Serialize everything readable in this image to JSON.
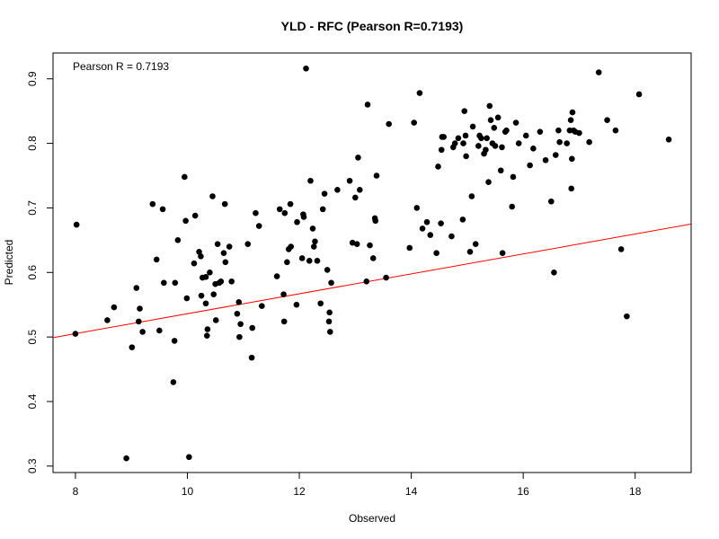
{
  "chart_data": {
    "type": "scatter",
    "title": "YLD - RFC (Pearson R=0.7193)",
    "xlabel": "Observed",
    "ylabel": "Predicted",
    "annotation": "Pearson R = 0.7193",
    "xlim": [
      7.6,
      19.0
    ],
    "ylim": [
      0.29,
      0.94
    ],
    "xticks": [
      8,
      10,
      12,
      14,
      16,
      18
    ],
    "yticks": [
      0.3,
      0.4,
      0.5,
      0.6,
      0.7,
      0.8,
      0.9
    ],
    "point_color": "#000000",
    "line_color": "#ff0000",
    "fit_line": {
      "x": [
        7.6,
        19.0
      ],
      "y": [
        0.499,
        0.675
      ]
    },
    "points": [
      [
        8.0,
        0.505
      ],
      [
        8.02,
        0.674
      ],
      [
        8.57,
        0.526
      ],
      [
        8.69,
        0.546
      ],
      [
        8.91,
        0.312
      ],
      [
        9.01,
        0.484
      ],
      [
        9.09,
        0.576
      ],
      [
        9.13,
        0.524
      ],
      [
        9.15,
        0.544
      ],
      [
        9.2,
        0.508
      ],
      [
        9.38,
        0.706
      ],
      [
        9.45,
        0.62
      ],
      [
        9.5,
        0.51
      ],
      [
        9.56,
        0.698
      ],
      [
        9.58,
        0.584
      ],
      [
        9.75,
        0.43
      ],
      [
        9.77,
        0.494
      ],
      [
        9.78,
        0.584
      ],
      [
        9.83,
        0.65
      ],
      [
        9.95,
        0.748
      ],
      [
        9.97,
        0.68
      ],
      [
        9.99,
        0.56
      ],
      [
        10.03,
        0.314
      ],
      [
        10.12,
        0.614
      ],
      [
        10.14,
        0.688
      ],
      [
        10.21,
        0.632
      ],
      [
        10.24,
        0.625
      ],
      [
        10.25,
        0.564
      ],
      [
        10.27,
        0.592
      ],
      [
        10.33,
        0.593
      ],
      [
        10.33,
        0.552
      ],
      [
        10.35,
        0.502
      ],
      [
        10.36,
        0.512
      ],
      [
        10.4,
        0.6
      ],
      [
        10.45,
        0.718
      ],
      [
        10.47,
        0.566
      ],
      [
        10.5,
        0.582
      ],
      [
        10.51,
        0.526
      ],
      [
        10.54,
        0.644
      ],
      [
        10.57,
        0.584
      ],
      [
        10.6,
        0.586
      ],
      [
        10.65,
        0.63
      ],
      [
        10.67,
        0.706
      ],
      [
        10.68,
        0.616
      ],
      [
        10.75,
        0.64
      ],
      [
        10.79,
        0.586
      ],
      [
        10.89,
        0.536
      ],
      [
        10.92,
        0.554
      ],
      [
        10.93,
        0.5
      ],
      [
        10.95,
        0.52
      ],
      [
        11.08,
        0.644
      ],
      [
        11.15,
        0.468
      ],
      [
        11.16,
        0.514
      ],
      [
        11.22,
        0.692
      ],
      [
        11.28,
        0.672
      ],
      [
        11.33,
        0.548
      ],
      [
        11.6,
        0.594
      ],
      [
        11.65,
        0.698
      ],
      [
        11.72,
        0.566
      ],
      [
        11.73,
        0.524
      ],
      [
        11.74,
        0.692
      ],
      [
        11.78,
        0.616
      ],
      [
        11.81,
        0.636
      ],
      [
        11.84,
        0.706
      ],
      [
        11.85,
        0.64
      ],
      [
        11.95,
        0.55
      ],
      [
        11.96,
        0.678
      ],
      [
        12.05,
        0.622
      ],
      [
        12.07,
        0.69
      ],
      [
        12.08,
        0.686
      ],
      [
        12.12,
        0.916
      ],
      [
        12.18,
        0.618
      ],
      [
        12.2,
        0.742
      ],
      [
        12.24,
        0.668
      ],
      [
        12.26,
        0.64
      ],
      [
        12.28,
        0.648
      ],
      [
        12.32,
        0.618
      ],
      [
        12.38,
        0.552
      ],
      [
        12.42,
        0.698
      ],
      [
        12.45,
        0.722
      ],
      [
        12.5,
        0.604
      ],
      [
        12.53,
        0.524
      ],
      [
        12.54,
        0.538
      ],
      [
        12.55,
        0.508
      ],
      [
        12.57,
        0.584
      ],
      [
        12.68,
        0.728
      ],
      [
        12.9,
        0.742
      ],
      [
        12.95,
        0.646
      ],
      [
        13.0,
        0.716
      ],
      [
        13.03,
        0.644
      ],
      [
        13.05,
        0.778
      ],
      [
        13.08,
        0.728
      ],
      [
        13.2,
        0.586
      ],
      [
        13.22,
        0.86
      ],
      [
        13.26,
        0.642
      ],
      [
        13.32,
        0.622
      ],
      [
        13.35,
        0.684
      ],
      [
        13.36,
        0.68
      ],
      [
        13.38,
        0.75
      ],
      [
        13.55,
        0.592
      ],
      [
        13.6,
        0.83
      ],
      [
        13.97,
        0.638
      ],
      [
        14.05,
        0.832
      ],
      [
        14.1,
        0.7
      ],
      [
        14.15,
        0.878
      ],
      [
        14.2,
        0.668
      ],
      [
        14.28,
        0.678
      ],
      [
        14.34,
        0.658
      ],
      [
        14.45,
        0.63
      ],
      [
        14.48,
        0.764
      ],
      [
        14.53,
        0.676
      ],
      [
        14.54,
        0.79
      ],
      [
        14.55,
        0.81
      ],
      [
        14.58,
        0.81
      ],
      [
        14.72,
        0.656
      ],
      [
        14.75,
        0.794
      ],
      [
        14.78,
        0.8
      ],
      [
        14.84,
        0.808
      ],
      [
        14.92,
        0.682
      ],
      [
        14.93,
        0.8
      ],
      [
        14.95,
        0.85
      ],
      [
        14.97,
        0.812
      ],
      [
        14.98,
        0.78
      ],
      [
        15.05,
        0.632
      ],
      [
        15.08,
        0.718
      ],
      [
        15.1,
        0.826
      ],
      [
        15.15,
        0.644
      ],
      [
        15.2,
        0.796
      ],
      [
        15.22,
        0.812
      ],
      [
        15.25,
        0.808
      ],
      [
        15.3,
        0.784
      ],
      [
        15.33,
        0.79
      ],
      [
        15.35,
        0.808
      ],
      [
        15.38,
        0.74
      ],
      [
        15.4,
        0.858
      ],
      [
        15.42,
        0.836
      ],
      [
        15.45,
        0.8
      ],
      [
        15.48,
        0.824
      ],
      [
        15.5,
        0.796
      ],
      [
        15.55,
        0.84
      ],
      [
        15.6,
        0.758
      ],
      [
        15.62,
        0.794
      ],
      [
        15.63,
        0.63
      ],
      [
        15.68,
        0.818
      ],
      [
        15.7,
        0.82
      ],
      [
        15.8,
        0.702
      ],
      [
        15.82,
        0.748
      ],
      [
        15.87,
        0.832
      ],
      [
        15.92,
        0.8
      ],
      [
        16.05,
        0.812
      ],
      [
        16.12,
        0.766
      ],
      [
        16.18,
        0.792
      ],
      [
        16.3,
        0.818
      ],
      [
        16.4,
        0.774
      ],
      [
        16.5,
        0.71
      ],
      [
        16.55,
        0.6
      ],
      [
        16.58,
        0.782
      ],
      [
        16.63,
        0.82
      ],
      [
        16.65,
        0.802
      ],
      [
        16.78,
        0.8
      ],
      [
        16.83,
        0.82
      ],
      [
        16.85,
        0.836
      ],
      [
        16.86,
        0.73
      ],
      [
        16.87,
        0.776
      ],
      [
        16.88,
        0.848
      ],
      [
        16.9,
        0.82
      ],
      [
        16.93,
        0.818
      ],
      [
        17.0,
        0.816
      ],
      [
        17.18,
        0.802
      ],
      [
        17.35,
        0.91
      ],
      [
        17.5,
        0.836
      ],
      [
        17.65,
        0.82
      ],
      [
        17.75,
        0.636
      ],
      [
        17.85,
        0.532
      ],
      [
        18.07,
        0.876
      ],
      [
        18.6,
        0.806
      ]
    ]
  }
}
